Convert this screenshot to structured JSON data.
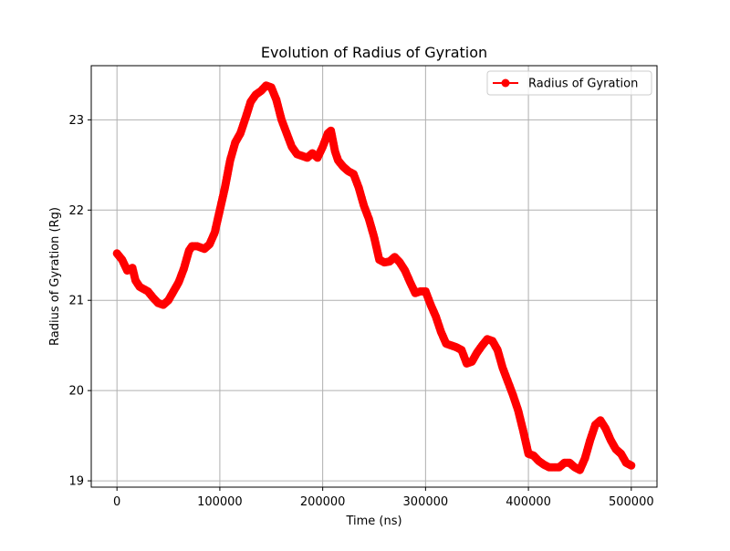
{
  "chart_data": {
    "type": "line",
    "title": "Evolution of Radius of Gyration",
    "xlabel": "Time (ns)",
    "ylabel": "Radius of Gyration (Rg)",
    "xlim": [
      -25000,
      525000
    ],
    "ylim": [
      18.93,
      23.6
    ],
    "xticks": [
      0,
      100000,
      200000,
      300000,
      400000,
      500000
    ],
    "yticks": [
      19,
      20,
      21,
      22,
      23
    ],
    "grid": true,
    "legend_position": "top-right",
    "series": [
      {
        "name": "Radius of Gyration",
        "color": "#ff0000",
        "marker": "circle",
        "x": [
          0,
          5000,
          10000,
          15000,
          18000,
          22000,
          30000,
          35000,
          40000,
          45000,
          50000,
          55000,
          60000,
          65000,
          70000,
          73000,
          78000,
          85000,
          90000,
          95000,
          100000,
          105000,
          110000,
          115000,
          120000,
          125000,
          130000,
          135000,
          140000,
          145000,
          150000,
          155000,
          160000,
          165000,
          170000,
          175000,
          180000,
          185000,
          190000,
          195000,
          200000,
          205000,
          208000,
          212000,
          215000,
          220000,
          225000,
          230000,
          235000,
          240000,
          245000,
          250000,
          255000,
          260000,
          265000,
          270000,
          275000,
          280000,
          285000,
          290000,
          295000,
          300000,
          305000,
          310000,
          315000,
          320000,
          325000,
          330000,
          335000,
          340000,
          345000,
          350000,
          355000,
          360000,
          365000,
          370000,
          375000,
          380000,
          385000,
          390000,
          395000,
          400000,
          405000,
          410000,
          415000,
          420000,
          425000,
          430000,
          435000,
          440000,
          445000,
          450000,
          455000,
          460000,
          465000,
          470000,
          475000,
          480000,
          485000,
          490000,
          495000,
          500000
        ],
        "values": [
          21.52,
          21.45,
          21.33,
          21.36,
          21.22,
          21.15,
          21.1,
          21.03,
          20.97,
          20.95,
          21.0,
          21.1,
          21.2,
          21.35,
          21.55,
          21.6,
          21.6,
          21.57,
          21.62,
          21.75,
          22.0,
          22.25,
          22.55,
          22.75,
          22.85,
          23.02,
          23.2,
          23.28,
          23.32,
          23.38,
          23.36,
          23.22,
          23.0,
          22.85,
          22.7,
          22.62,
          22.6,
          22.58,
          22.63,
          22.58,
          22.7,
          22.85,
          22.88,
          22.65,
          22.55,
          22.48,
          22.43,
          22.4,
          22.25,
          22.05,
          21.9,
          21.7,
          21.45,
          21.42,
          21.43,
          21.48,
          21.42,
          21.33,
          21.2,
          21.08,
          21.1,
          21.1,
          20.95,
          20.82,
          20.65,
          20.52,
          20.5,
          20.48,
          20.45,
          20.3,
          20.32,
          20.42,
          20.5,
          20.57,
          20.55,
          20.45,
          20.25,
          20.1,
          19.95,
          19.78,
          19.55,
          19.3,
          19.28,
          19.22,
          19.18,
          19.15,
          19.15,
          19.15,
          19.2,
          19.2,
          19.15,
          19.12,
          19.25,
          19.45,
          19.62,
          19.67,
          19.58,
          19.45,
          19.35,
          19.3,
          19.2,
          19.17
        ]
      }
    ]
  }
}
